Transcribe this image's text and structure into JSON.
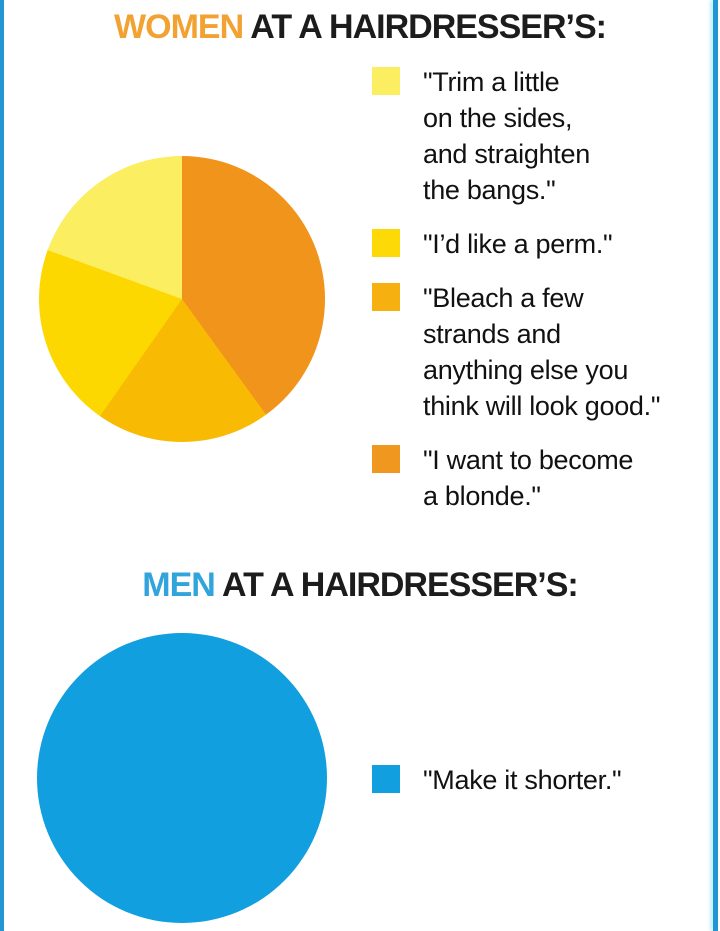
{
  "page": {
    "background": "#ffffff",
    "side_border_color": "#2196d2"
  },
  "sections": {
    "women": {
      "title_highlight": "WOMEN",
      "title_rest": " AT A HAIRDRESSER’S:",
      "highlight_color": "#f2a233"
    },
    "men": {
      "title_highlight": "MEN",
      "title_rest": " AT A HAIRDRESSER’S:",
      "highlight_color": "#30a4db"
    }
  },
  "chart_data": [
    {
      "type": "pie",
      "title": "WOMEN AT A HAIRDRESSER’S:",
      "start_angle_deg": 0,
      "direction": "clockwise",
      "legend_position": "right",
      "slices": [
        {
          "label": "\"I want to become a blonde.\"",
          "percent": 40,
          "angle_deg": 144,
          "color": "#f0941c"
        },
        {
          "label": "\"Bleach a few strands and anything else you think will look good.\"",
          "percent": 20,
          "angle_deg": 71,
          "color": "#f8ba03"
        },
        {
          "label": "\"I’d like a perm.\"",
          "percent": 21,
          "angle_deg": 75,
          "color": "#fdd800"
        },
        {
          "label": "\"Trim a little on the sides, and straighten the bangs.\"",
          "percent": 19,
          "angle_deg": 70,
          "color": "#fbee61"
        }
      ],
      "legend_items": [
        {
          "color": "#fbee61",
          "lines": [
            "\"Trim a little",
            "on the sides,",
            "and straighten",
            "the bangs.\""
          ]
        },
        {
          "color": "#fdd908",
          "lines": [
            "\"I’d like a perm.\""
          ]
        },
        {
          "color": "#f6b00f",
          "lines": [
            "\"Bleach a few",
            "strands and",
            "anything else you",
            "think will look good.\""
          ]
        },
        {
          "color": "#f0971f",
          "lines": [
            "\"I want to become",
            "a blonde.\""
          ]
        }
      ]
    },
    {
      "type": "pie",
      "title": "MEN AT A HAIRDRESSER’S:",
      "start_angle_deg": 0,
      "direction": "clockwise",
      "legend_position": "right",
      "slices": [
        {
          "label": "\"Make it shorter.\"",
          "percent": 100,
          "angle_deg": 360,
          "color": "#129fdf"
        }
      ],
      "legend_items": [
        {
          "color": "#129fdf",
          "lines": [
            "\"Make it shorter.\""
          ]
        }
      ]
    }
  ]
}
